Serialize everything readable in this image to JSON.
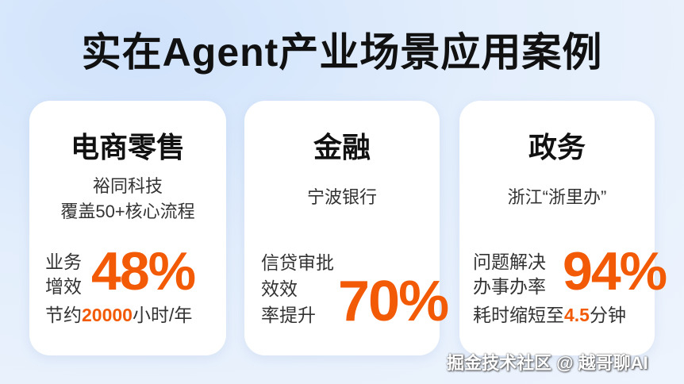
{
  "title": "实在Agent产业场景应用案例",
  "accent_color": "#f25a06",
  "cards": [
    {
      "heading": "电商零售",
      "sub1": "裕同科技",
      "sub2": "覆盖50+核心流程",
      "label1": "业务",
      "label2": "增效",
      "stat": "48%",
      "note_pre": "节约",
      "note_num": "20000",
      "note_post": "小时/年"
    },
    {
      "heading": "金融",
      "sub1": "宁波银行",
      "label1": "信贷审批",
      "label2": "效效",
      "label3": "率提升",
      "stat": "70%"
    },
    {
      "heading": "政务",
      "sub1": "浙江“浙里办”",
      "label1": "问题解决",
      "label2": "办事办率",
      "stat": "94%",
      "note_pre": "耗时缩短至",
      "note_num": "4.5",
      "note_post": "分钟"
    }
  ],
  "watermark": "掘金技术社区 @ 越哥聊AI"
}
